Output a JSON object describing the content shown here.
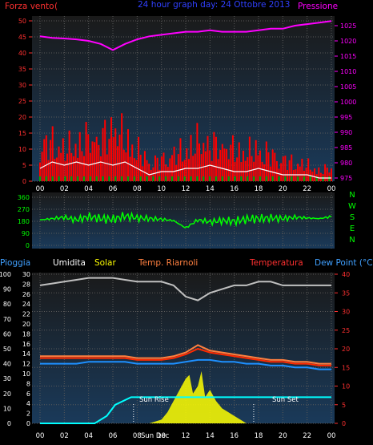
{
  "header": {
    "wind_label": "Forza vento",
    "wind_unit": "(",
    "date_title": "24 hour graph day:  24 Ottobre 2013",
    "pressure_label": "Pressione"
  },
  "panel_labels": {
    "rain": "Pioggia",
    "humidity": "Umidita",
    "solar": "Solar",
    "temp_ri": "Temp. Riarnoli",
    "temperature": "Temperatura",
    "dewpoint": "Dew Point (°C)"
  },
  "annotations": {
    "sunrise": "Sun Rise",
    "sunset": "Sun Set",
    "sunbar_label": "Sun Dec"
  },
  "colors": {
    "panel_bg_top": "#1a1a1a",
    "panel_bg_bottom": "#1a3a5a",
    "grid": "#5a5a5a",
    "wind_gust": "#ff0000",
    "wind_avg": "#ffffff",
    "wind_calm": "#00aa00",
    "pressure": "#ff00ff",
    "direction": "#00ff00",
    "humidity": "#c0c0c0",
    "temperature": "#ff2a00",
    "temp_ri": "#ff8040",
    "dewpoint": "#1e90ff",
    "solar": "#ffff00",
    "sun_line": "#00ffff",
    "left_axis_text": "#ff3030",
    "time_axis_text": "#ffffff"
  },
  "chart_data": [
    {
      "type": "bar",
      "name_ref": "wind_pressure",
      "x_ticks": [
        "00",
        "02",
        "04",
        "06",
        "08",
        "10",
        "12",
        "14",
        "16",
        "18",
        "20",
        "22",
        "00"
      ],
      "left_axis_ticks": [
        0,
        5,
        10,
        15,
        20,
        25,
        30,
        35,
        40,
        45,
        50
      ],
      "right_axis_ticks": [
        975,
        980,
        985,
        990,
        995,
        1000,
        1005,
        1010,
        1015,
        1020,
        1025
      ],
      "ylim_left": [
        0,
        50
      ],
      "ylim_right": [
        975,
        1025
      ],
      "pressure_x": [
        0,
        1,
        2,
        3,
        4,
        5,
        6,
        7,
        8,
        9,
        10,
        11,
        12,
        13,
        14,
        15,
        16,
        17,
        18,
        19,
        20,
        21,
        22,
        23,
        24
      ],
      "pressure_values": [
        1021.5,
        1021,
        1020.8,
        1020.5,
        1020,
        1019,
        1017,
        1019,
        1020.5,
        1021.5,
        1022,
        1022.5,
        1023,
        1023,
        1023.5,
        1023,
        1023,
        1023,
        1023.5,
        1024,
        1024,
        1025,
        1025.5,
        1026,
        1026.5
      ],
      "gust_x": [
        0,
        1,
        2,
        3,
        4,
        5,
        6,
        7,
        8,
        9,
        10,
        11,
        12,
        13,
        14,
        15,
        16,
        17,
        18,
        19,
        20,
        21,
        22,
        23,
        24
      ],
      "gust_values": [
        13,
        15,
        12,
        14,
        16,
        15,
        21,
        16,
        12,
        7,
        8,
        10,
        12,
        15,
        14,
        13,
        12,
        11,
        12,
        10,
        8,
        7,
        6,
        4,
        5
      ],
      "avg_x": [
        0,
        1,
        2,
        3,
        4,
        5,
        6,
        7,
        8,
        9,
        10,
        11,
        12,
        13,
        14,
        15,
        16,
        17,
        18,
        19,
        20,
        21,
        22,
        23,
        24
      ],
      "avg_values": [
        4,
        6,
        5,
        6,
        5,
        6,
        5,
        6,
        4,
        2,
        3,
        3,
        4,
        4,
        5,
        4,
        3,
        3,
        4,
        3,
        2,
        2,
        2,
        1,
        1
      ]
    },
    {
      "type": "line",
      "name_ref": "wind_direction",
      "x_ticks": [
        "00",
        "02",
        "04",
        "06",
        "08",
        "10",
        "12",
        "14",
        "16",
        "18",
        "20",
        "22",
        "00"
      ],
      "y_ticks": [
        0,
        90,
        180,
        270,
        360
      ],
      "compass": [
        "N",
        "W",
        "S",
        "E",
        "N"
      ],
      "ylim": [
        0,
        360
      ],
      "x": [
        0,
        1,
        2,
        3,
        4,
        5,
        6,
        7,
        8,
        9,
        10,
        11,
        12,
        13,
        14,
        15,
        16,
        17,
        18,
        19,
        20,
        21,
        22,
        23,
        24
      ],
      "values": [
        190,
        200,
        210,
        190,
        215,
        200,
        195,
        220,
        205,
        200,
        195,
        185,
        130,
        190,
        175,
        185,
        180,
        195,
        200,
        205,
        200,
        210,
        205,
        200,
        215
      ]
    },
    {
      "type": "line",
      "name_ref": "temp_humidity_solar",
      "x_ticks": [
        "00",
        "02",
        "04",
        "06",
        "08",
        "10",
        "12",
        "14",
        "16",
        "18",
        "20",
        "22",
        "00"
      ],
      "rain_ticks": [
        0,
        10,
        20,
        30,
        40,
        50,
        60,
        70,
        80,
        90,
        100
      ],
      "humidity_ticks": [
        0,
        2,
        4,
        6,
        8,
        10,
        12,
        14,
        16,
        18,
        20,
        22,
        24,
        26,
        28,
        30
      ],
      "temp_ticks": [
        0,
        5,
        10,
        15,
        20,
        25,
        30,
        35,
        40
      ],
      "ylim_temp": [
        0,
        40
      ],
      "x": [
        0,
        1,
        2,
        3,
        4,
        5,
        6,
        7,
        8,
        9,
        10,
        11,
        12,
        13,
        14,
        15,
        16,
        17,
        18,
        19,
        20,
        21,
        22,
        23,
        24
      ],
      "series": [
        {
          "ref": "humidity",
          "values": [
            37,
            37.5,
            38,
            38.5,
            39,
            39,
            39,
            38.5,
            38,
            38,
            38,
            37,
            34,
            33,
            35,
            36,
            37,
            37,
            38,
            38,
            37,
            37,
            37,
            37,
            37
          ]
        },
        {
          "ref": "temperature",
          "values": [
            17.5,
            17.5,
            17.5,
            17.5,
            17.5,
            17.5,
            17.5,
            17.5,
            17,
            17,
            17,
            17.5,
            18.5,
            20,
            19,
            18.5,
            18,
            17.5,
            17,
            16.5,
            16.5,
            16,
            16,
            15.5,
            15.5
          ]
        },
        {
          "ref": "temp_ri",
          "values": [
            18,
            18,
            18,
            18,
            18,
            18,
            18,
            18,
            17.5,
            17.5,
            17.5,
            18,
            19,
            21,
            19.5,
            19,
            18.5,
            18,
            17.5,
            17,
            17,
            16.5,
            16.5,
            16,
            16
          ]
        },
        {
          "ref": "dewpoint",
          "values": [
            16,
            16,
            16,
            16,
            16.5,
            16.5,
            16.5,
            16.5,
            16,
            16,
            16,
            16,
            16.5,
            17,
            17,
            16.5,
            16.5,
            16,
            16,
            15.5,
            15.5,
            15,
            15,
            14.5,
            14.5
          ]
        }
      ],
      "solar_x": [
        9,
        10,
        10.5,
        11,
        11.5,
        12,
        12.3,
        12.6,
        13,
        13.3,
        13.6,
        14,
        14.5,
        15,
        15.5,
        16,
        16.5,
        17
      ],
      "solar_values": [
        0,
        1,
        3,
        6,
        9,
        12,
        13,
        8,
        10,
        14,
        7,
        9,
        6,
        4,
        3,
        2,
        1,
        0
      ],
      "sun_x": [
        0,
        4.5,
        5.5,
        6.2,
        7.5,
        24
      ],
      "sun_values": [
        0,
        0,
        2,
        5,
        7,
        7
      ],
      "sunrise_hour": 7.7,
      "sunset_hour": 17.6
    }
  ]
}
